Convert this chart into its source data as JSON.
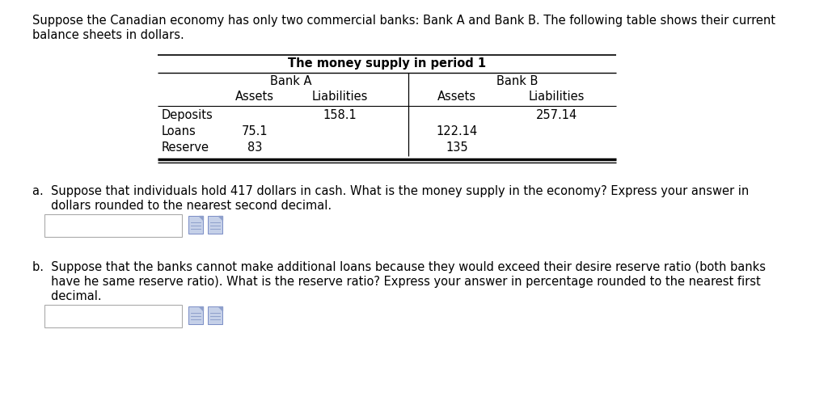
{
  "intro_text_line1": "Suppose the Canadian economy has only two commercial banks: Bank A and Bank B. The following table shows their current",
  "intro_text_line2": "balance sheets in dollars.",
  "table_title": "The money supply in period 1",
  "bank_a_label": "Bank A",
  "bank_b_label": "Bank B",
  "row_labels": [
    "Deposits",
    "Loans",
    "Reserve"
  ],
  "bank_a_assets": [
    "",
    "75.1",
    "83"
  ],
  "bank_a_liabilities": [
    "158.1",
    "",
    ""
  ],
  "bank_b_assets": [
    "",
    "122.14",
    "135"
  ],
  "bank_b_liabilities": [
    "257.14",
    "",
    ""
  ],
  "question_a_line1": "a.  Suppose that individuals hold 417 dollars in cash. What is the money supply in the economy? Express your answer in",
  "question_a_line2": "     dollars rounded to the nearest second decimal.",
  "question_b_line1": "b.  Suppose that the banks cannot make additional loans because they would exceed their desire reserve ratio (both banks",
  "question_b_line2": "     have he same reserve ratio). What is the reserve ratio? Express your answer in percentage rounded to the nearest first",
  "question_b_line3": "     decimal.",
  "bg_color": "#ffffff",
  "text_color": "#000000",
  "font_size": 10.5
}
